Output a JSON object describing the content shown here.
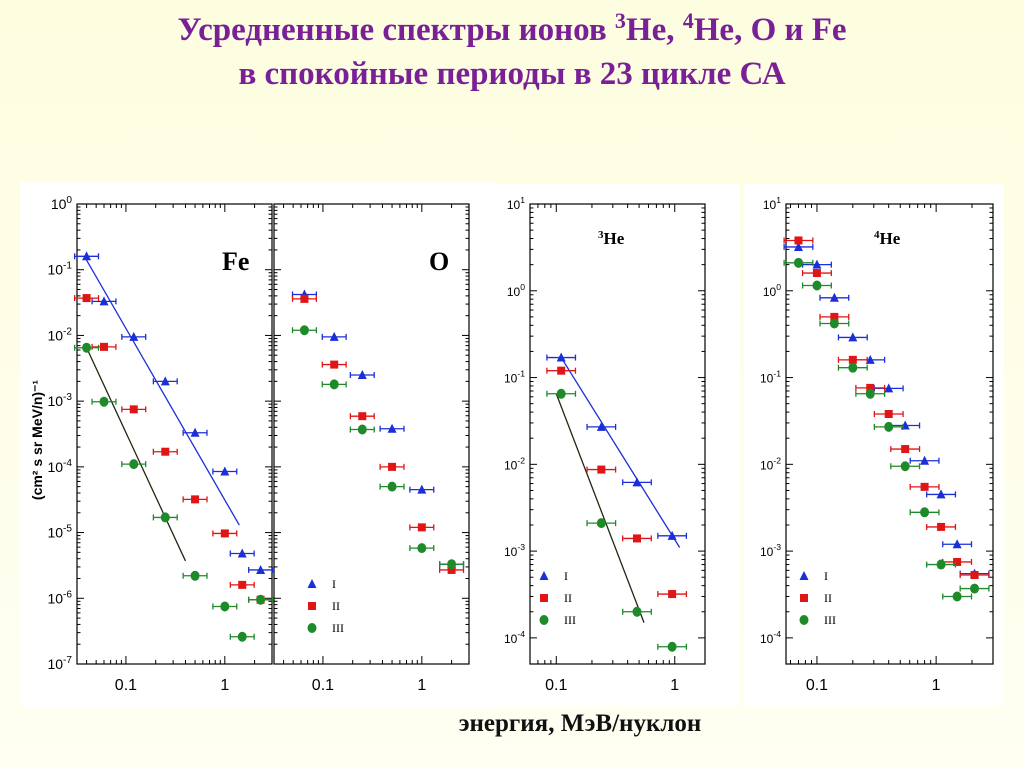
{
  "title": {
    "line1_a": "Усредненные спектры ионов ",
    "sup_3": "3",
    "line1_b": "He, ",
    "sup_4": "4",
    "line1_c": "He, O и Fe",
    "line2": "в спокойные периоды в 23 цикле СА"
  },
  "x_caption": "энергия, МэВ/нуклон",
  "colors": {
    "I": "#1b2fd8",
    "II": "#e01515",
    "III": "#1e8a2a",
    "fit_I": "#1b2fd8",
    "fit_III": "#1c2a10"
  },
  "legend": [
    "I",
    "II",
    "III"
  ],
  "chart_data": [
    {
      "id": "fe",
      "type": "scatter",
      "panel_label": "Fe",
      "log_x": true,
      "log_y": true,
      "xlim": [
        0.032,
        3.0
      ],
      "ylim": [
        1e-07,
        1
      ],
      "y_tick_labels": [
        "10^0",
        "10^-1",
        "10^-2",
        "10^-3",
        "10^-4",
        "10^-5",
        "10^-6",
        "10^-7"
      ],
      "x_tick_labels": [
        "0.1",
        "1"
      ],
      "ylabel": "(cm^2 s sr MeV/n)^-1",
      "series": [
        {
          "name": "I",
          "values": [
            [
              0.04,
              0.16
            ],
            [
              0.06,
              0.033
            ],
            [
              0.12,
              0.0095
            ],
            [
              0.25,
              0.002
            ],
            [
              0.5,
              0.00033
            ],
            [
              1.0,
              8.5e-05
            ],
            [
              1.5,
              4.8e-06
            ],
            [
              2.3,
              2.7e-06
            ]
          ]
        },
        {
          "name": "II",
          "values": [
            [
              0.04,
              0.037
            ],
            [
              0.06,
              0.0067
            ],
            [
              0.12,
              0.00075
            ],
            [
              0.25,
              0.00017
            ],
            [
              0.5,
              3.2e-05
            ],
            [
              1.0,
              9.7e-06
            ],
            [
              1.5,
              1.6e-06
            ],
            [
              2.3,
              9.5e-07
            ]
          ]
        },
        {
          "name": "III",
          "values": [
            [
              0.04,
              0.0065
            ],
            [
              0.06,
              0.00098
            ],
            [
              0.12,
              0.00011
            ],
            [
              0.25,
              1.7e-05
            ],
            [
              0.5,
              2.2e-06
            ],
            [
              1.0,
              7.5e-07
            ],
            [
              1.5,
              2.6e-07
            ],
            [
              2.3,
              9.5e-07
            ]
          ]
        }
      ],
      "fits": [
        {
          "series": "I",
          "points": [
            [
              0.038,
              0.16
            ],
            [
              1.4,
              1.3e-05
            ]
          ]
        },
        {
          "series": "III",
          "points": [
            [
              0.04,
              0.0065
            ],
            [
              0.4,
              3.7e-06
            ]
          ]
        }
      ]
    },
    {
      "id": "o",
      "type": "scatter",
      "panel_label": "O",
      "log_x": true,
      "log_y": true,
      "xlim": [
        0.032,
        3.0
      ],
      "ylim": [
        1e-07,
        1
      ],
      "x_tick_labels": [
        "0.1",
        "1"
      ],
      "series": [
        {
          "name": "I",
          "values": [
            [
              0.065,
              0.042
            ],
            [
              0.13,
              0.0095
            ],
            [
              0.25,
              0.0025
            ],
            [
              0.5,
              0.00038
            ],
            [
              1.0,
              4.5e-05
            ],
            [
              2.0,
              3.3e-06
            ]
          ]
        },
        {
          "name": "II",
          "values": [
            [
              0.065,
              0.036
            ],
            [
              0.13,
              0.0036
            ],
            [
              0.25,
              0.00059
            ],
            [
              0.5,
              0.0001
            ],
            [
              1.0,
              1.2e-05
            ],
            [
              2.0,
              2.7e-06
            ]
          ]
        },
        {
          "name": "III",
          "values": [
            [
              0.065,
              0.012
            ],
            [
              0.13,
              0.0018
            ],
            [
              0.25,
              0.00037
            ],
            [
              0.5,
              5e-05
            ],
            [
              1.0,
              5.8e-06
            ],
            [
              2.0,
              3.3e-06
            ]
          ]
        }
      ]
    },
    {
      "id": "he3",
      "type": "scatter",
      "panel_label": "3He",
      "log_x": true,
      "log_y": true,
      "xlim": [
        0.06,
        1.8
      ],
      "ylim": [
        5e-05,
        10
      ],
      "y_tick_labels": [
        "10^1",
        "10^0",
        "10^-1",
        "10^-2",
        "10^-3",
        "10^-4"
      ],
      "x_tick_labels": [
        "0.1",
        "1"
      ],
      "series": [
        {
          "name": "I",
          "values": [
            [
              0.11,
              0.17
            ],
            [
              0.24,
              0.027
            ],
            [
              0.48,
              0.0062
            ],
            [
              0.95,
              0.0015
            ]
          ]
        },
        {
          "name": "II",
          "values": [
            [
              0.11,
              0.12
            ],
            [
              0.24,
              0.0087
            ],
            [
              0.48,
              0.0014
            ],
            [
              0.95,
              0.00032
            ]
          ]
        },
        {
          "name": "III",
          "values": [
            [
              0.11,
              0.065
            ],
            [
              0.24,
              0.0021
            ],
            [
              0.48,
              0.0002
            ],
            [
              0.95,
              7.9e-05
            ]
          ]
        }
      ],
      "fits": [
        {
          "series": "I",
          "points": [
            [
              0.11,
              0.17
            ],
            [
              1.1,
              0.0011
            ]
          ]
        },
        {
          "series": "III",
          "points": [
            [
              0.1,
              0.065
            ],
            [
              0.55,
              0.00015
            ]
          ]
        }
      ]
    },
    {
      "id": "he4",
      "type": "scatter",
      "panel_label": "4He",
      "log_x": true,
      "log_y": true,
      "xlim": [
        0.055,
        3.0
      ],
      "ylim": [
        5e-05,
        10
      ],
      "y_tick_labels": [
        "10^1",
        "10^0",
        "10^-1",
        "10^-2",
        "10^-3",
        "10^-4"
      ],
      "x_tick_labels": [
        "0.1",
        "1"
      ],
      "series": [
        {
          "name": "I",
          "values": [
            [
              0.07,
              3.2
            ],
            [
              0.1,
              2.0
            ],
            [
              0.14,
              0.83
            ],
            [
              0.2,
              0.29
            ],
            [
              0.28,
              0.16
            ],
            [
              0.4,
              0.075
            ],
            [
              0.55,
              0.028
            ],
            [
              0.8,
              0.011
            ],
            [
              1.1,
              0.0045
            ],
            [
              1.5,
              0.0012
            ],
            [
              2.1,
              0.00055
            ]
          ]
        },
        {
          "name": "II",
          "values": [
            [
              0.07,
              3.8
            ],
            [
              0.1,
              1.6
            ],
            [
              0.14,
              0.5
            ],
            [
              0.2,
              0.16
            ],
            [
              0.28,
              0.076
            ],
            [
              0.4,
              0.038
            ],
            [
              0.55,
              0.015
            ],
            [
              0.8,
              0.0055
            ],
            [
              1.1,
              0.0019
            ],
            [
              1.5,
              0.00075
            ],
            [
              2.1,
              0.00053
            ]
          ]
        },
        {
          "name": "III",
          "values": [
            [
              0.07,
              2.1
            ],
            [
              0.1,
              1.15
            ],
            [
              0.14,
              0.42
            ],
            [
              0.2,
              0.13
            ],
            [
              0.28,
              0.065
            ],
            [
              0.4,
              0.027
            ],
            [
              0.55,
              0.0095
            ],
            [
              0.8,
              0.0028
            ],
            [
              1.1,
              0.0007
            ],
            [
              1.5,
              0.0003
            ],
            [
              2.1,
              0.00037
            ]
          ]
        }
      ]
    }
  ]
}
